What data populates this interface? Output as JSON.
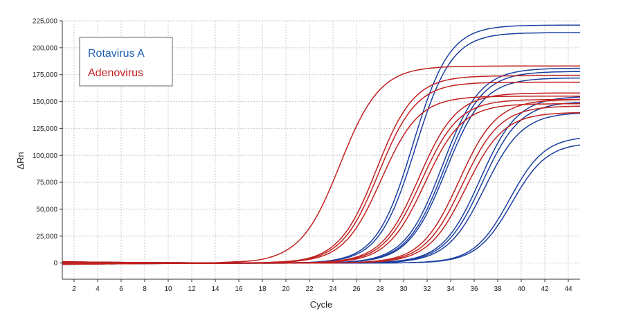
{
  "chart_data": {
    "type": "line",
    "title": "",
    "xlabel": "Cycle",
    "ylabel": "ΔRn",
    "xlim": [
      1,
      45
    ],
    "ylim": [
      -15000,
      225000
    ],
    "x_ticks": [
      2,
      4,
      6,
      8,
      10,
      12,
      14,
      16,
      18,
      20,
      22,
      24,
      26,
      28,
      30,
      32,
      34,
      36,
      38,
      40,
      42,
      44
    ],
    "y_ticks": [
      0,
      25000,
      50000,
      75000,
      100000,
      125000,
      150000,
      175000,
      200000,
      225000
    ],
    "y_tick_labels": [
      "0",
      "25,000",
      "50,000",
      "75,000",
      "100,000",
      "125,000",
      "150,000",
      "175,000",
      "200,000",
      "225,000"
    ],
    "grid": true,
    "legend_position": "top-left",
    "legend": [
      {
        "name": "Rotavirus A",
        "color": "#1f5fb4"
      },
      {
        "name": "Adenovirus",
        "color": "#c41e1e"
      }
    ],
    "series": [
      {
        "group": "Rotavirus A",
        "color": "#1a3fa0",
        "midpoint": 30.8,
        "slope": 1.55,
        "plateau": 221000
      },
      {
        "group": "Rotavirus A",
        "color": "#1a3fa0",
        "midpoint": 31.0,
        "slope": 1.55,
        "plateau": 214000
      },
      {
        "group": "Rotavirus A",
        "color": "#1a3fa0",
        "midpoint": 33.3,
        "slope": 1.6,
        "plateau": 181000
      },
      {
        "group": "Rotavirus A",
        "color": "#1a3fa0",
        "midpoint": 33.5,
        "slope": 1.6,
        "plateau": 178000
      },
      {
        "group": "Rotavirus A",
        "color": "#1a3fa0",
        "midpoint": 33.6,
        "slope": 1.6,
        "plateau": 172000
      },
      {
        "group": "Rotavirus A",
        "color": "#1a3fa0",
        "midpoint": 36.5,
        "slope": 1.6,
        "plateau": 155000
      },
      {
        "group": "Rotavirus A",
        "color": "#1a3fa0",
        "midpoint": 36.7,
        "slope": 1.6,
        "plateau": 150000
      },
      {
        "group": "Rotavirus A",
        "color": "#1a3fa0",
        "midpoint": 36.9,
        "slope": 1.6,
        "plateau": 140000
      },
      {
        "group": "Rotavirus A",
        "color": "#1a3fa0",
        "midpoint": 39.0,
        "slope": 1.5,
        "plateau": 118000
      },
      {
        "group": "Rotavirus A",
        "color": "#1a3fa0",
        "midpoint": 39.2,
        "slope": 1.5,
        "plateau": 112000
      },
      {
        "group": "Adenovirus",
        "color": "#c0201e",
        "midpoint": 24.6,
        "slope": 1.7,
        "plateau": 183000
      },
      {
        "group": "Adenovirus",
        "color": "#c0201e",
        "midpoint": 27.7,
        "slope": 1.6,
        "plateau": 174000
      },
      {
        "group": "Adenovirus",
        "color": "#c0201e",
        "midpoint": 27.9,
        "slope": 1.6,
        "plateau": 168000
      },
      {
        "group": "Adenovirus",
        "color": "#c0201e",
        "midpoint": 28.1,
        "slope": 1.6,
        "plateau": 155000
      },
      {
        "group": "Adenovirus",
        "color": "#c0201e",
        "midpoint": 31.3,
        "slope": 1.6,
        "plateau": 158000
      },
      {
        "group": "Adenovirus",
        "color": "#c0201e",
        "midpoint": 31.5,
        "slope": 1.6,
        "plateau": 152000
      },
      {
        "group": "Adenovirus",
        "color": "#c0201e",
        "midpoint": 31.8,
        "slope": 1.6,
        "plateau": 148000
      },
      {
        "group": "Adenovirus",
        "color": "#c0201e",
        "midpoint": 34.7,
        "slope": 1.6,
        "plateau": 152000
      },
      {
        "group": "Adenovirus",
        "color": "#c0201e",
        "midpoint": 35.0,
        "slope": 1.6,
        "plateau": 146000
      },
      {
        "group": "Adenovirus",
        "color": "#c0201e",
        "midpoint": 35.3,
        "slope": 1.6,
        "plateau": 140000
      }
    ]
  }
}
